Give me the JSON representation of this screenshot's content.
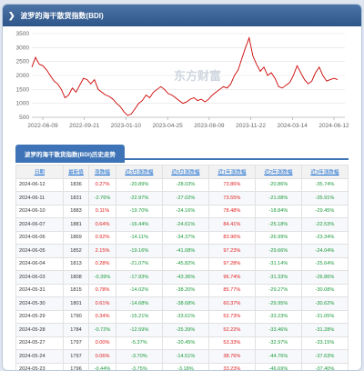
{
  "header": {
    "title": "波罗的海干散货指数(BDI)"
  },
  "chart_data": {
    "type": "line",
    "ylim": [
      500,
      3500
    ],
    "yticks": [
      500,
      1000,
      1500,
      2000,
      2500,
      3000,
      3500
    ],
    "x_tick_labels": [
      "2022-06-09",
      "2022-09-21",
      "2023-01-10",
      "2023-04-25",
      "2023-08-09",
      "2023-11-22",
      "2024-03-14",
      "2024-06-12"
    ],
    "watermark": "东方财富",
    "series": [
      {
        "color": "#cc0000",
        "values": [
          2300,
          2650,
          2400,
          2350,
          2200,
          2000,
          1800,
          1700,
          1500,
          1200,
          1300,
          1550,
          1400,
          1650,
          1900,
          1850,
          1700,
          1850,
          1500,
          1400,
          1300,
          1250,
          1150,
          1000,
          880,
          700,
          570,
          620,
          800,
          1000,
          1100,
          1300,
          1200,
          1400,
          1500,
          1600,
          1500,
          1350,
          1300,
          1200,
          1100,
          1000,
          1050,
          1150,
          1200,
          1100,
          1150,
          1050,
          1150,
          1300,
          1400,
          1500,
          1600,
          1550,
          1700,
          2000,
          2200,
          2600,
          3000,
          3350,
          2700,
          2400,
          2150,
          2300,
          2000,
          2100,
          1900,
          1600,
          1550,
          1650,
          1750,
          2000,
          2350,
          2100,
          1850,
          1700,
          1800,
          2100,
          2300,
          2000,
          1800,
          1850,
          1900,
          1850
        ]
      }
    ]
  },
  "section": {
    "title": "波罗的海干散货指数(BDI)历史走势"
  },
  "table": {
    "headers": [
      "日期",
      "最新值",
      "涨跌幅",
      "近3月涨跌幅",
      "近6月涨跌幅",
      "近1年涨跌幅",
      "近2年涨跌幅",
      "近3年涨跌幅"
    ],
    "rows": [
      [
        "2024-06-12",
        "1836",
        "0.27%",
        "-20.89%",
        "-28.03%",
        "73.86%",
        "-20.86%",
        "-35.74%"
      ],
      [
        "2024-06-11",
        "1831",
        "-2.76%",
        "-22.97%",
        "-27.02%",
        "73.55%",
        "-21.08%",
        "-35.91%"
      ],
      [
        "2024-06-10",
        "1883",
        "0.11%",
        "-19.70%",
        "-24.16%",
        "78.48%",
        "-18.84%",
        "-29.45%"
      ],
      [
        "2024-06-07",
        "1881",
        "0.64%",
        "-16.44%",
        "-24.61%",
        "84.41%",
        "-25.18%",
        "-22.53%"
      ],
      [
        "2024-06-06",
        "1869",
        "0.92%",
        "-14.11%",
        "-34.37%",
        "83.96%",
        "-26.99%",
        "-23.34%"
      ],
      [
        "2024-06-05",
        "1852",
        "2.15%",
        "-19.16%",
        "-41.08%",
        "97.23%",
        "-29.66%",
        "-24.04%"
      ],
      [
        "2024-06-04",
        "1813",
        "0.28%",
        "-21.07%",
        "-45.82%",
        "97.28%",
        "-31.14%",
        "-25.64%"
      ],
      [
        "2024-06-03",
        "1808",
        "-0.39%",
        "-17.93%",
        "-43.36%",
        "96.74%",
        "-31.33%",
        "-26.86%"
      ],
      [
        "2024-05-31",
        "1815",
        "0.78%",
        "-14.02%",
        "-38.20%",
        "85.77%",
        "-29.27%",
        "-30.08%"
      ],
      [
        "2024-05-30",
        "1801",
        "0.61%",
        "-14.68%",
        "-38.68%",
        "60.37%",
        "-29.95%",
        "-30.62%"
      ],
      [
        "2024-05-29",
        "1790",
        "0.34%",
        "-15.21%",
        "-33.61%",
        "52.73%",
        "-33.23%",
        "-31.05%"
      ],
      [
        "2024-05-28",
        "1784",
        "-0.72%",
        "-12.59%",
        "-25.39%",
        "52.22%",
        "-33.46%",
        "-31.28%"
      ],
      [
        "2024-05-27",
        "1797",
        "0.00%",
        "-5.37%",
        "-20.45%",
        "53.33%",
        "-32.97%",
        "-33.15%"
      ],
      [
        "2024-05-24",
        "1797",
        "0.06%",
        "-3.70%",
        "-14.51%",
        "38.76%",
        "-44.76%",
        "-37.63%"
      ],
      [
        "2024-05-23",
        "1796",
        "-0.44%",
        "-3.75%",
        "-3.18%",
        "33.23%",
        "-46.69%",
        "-37.40%"
      ]
    ]
  }
}
